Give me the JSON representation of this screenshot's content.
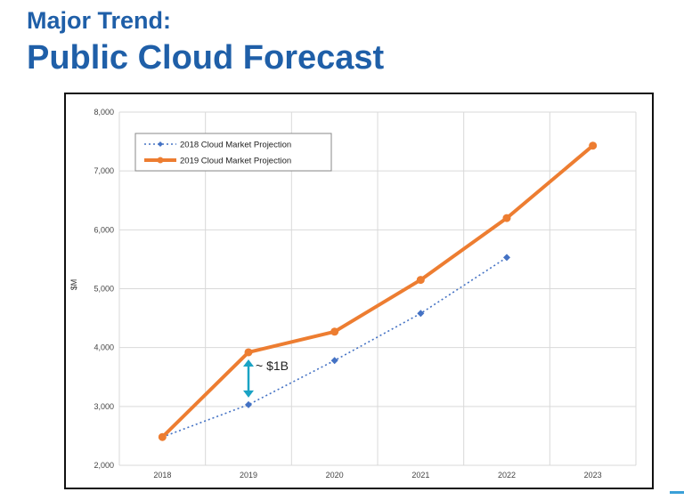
{
  "slide": {
    "title_line1": "Major Trend:",
    "title_line2": "Public Cloud Forecast",
    "accent_color": "#1f5fa8"
  },
  "chart_data": {
    "type": "line",
    "categories": [
      "2018",
      "2019",
      "2020",
      "2021",
      "2022",
      "2023"
    ],
    "series": [
      {
        "name": "2018 Cloud Market Projection",
        "values": [
          2480,
          3030,
          3780,
          4580,
          5530,
          null
        ],
        "color": "#4472c4",
        "style": "dotted",
        "marker": "diamond"
      },
      {
        "name": "2019 Cloud Market Projection",
        "values": [
          2480,
          3920,
          4270,
          5150,
          6200,
          7430
        ],
        "color": "#ed7d31",
        "style": "solid",
        "marker": "circle"
      }
    ],
    "ylabel": "$M",
    "ylim": [
      2000,
      8000
    ],
    "yticks": [
      "2,000",
      "3,000",
      "4,000",
      "5,000",
      "6,000",
      "7,000",
      "8,000"
    ],
    "grid": true,
    "legend_position": "top-left",
    "annotation": {
      "text": "~ $1B",
      "category": "2019",
      "from": 3030,
      "to": 3920,
      "color": "#1aa3c4"
    }
  }
}
